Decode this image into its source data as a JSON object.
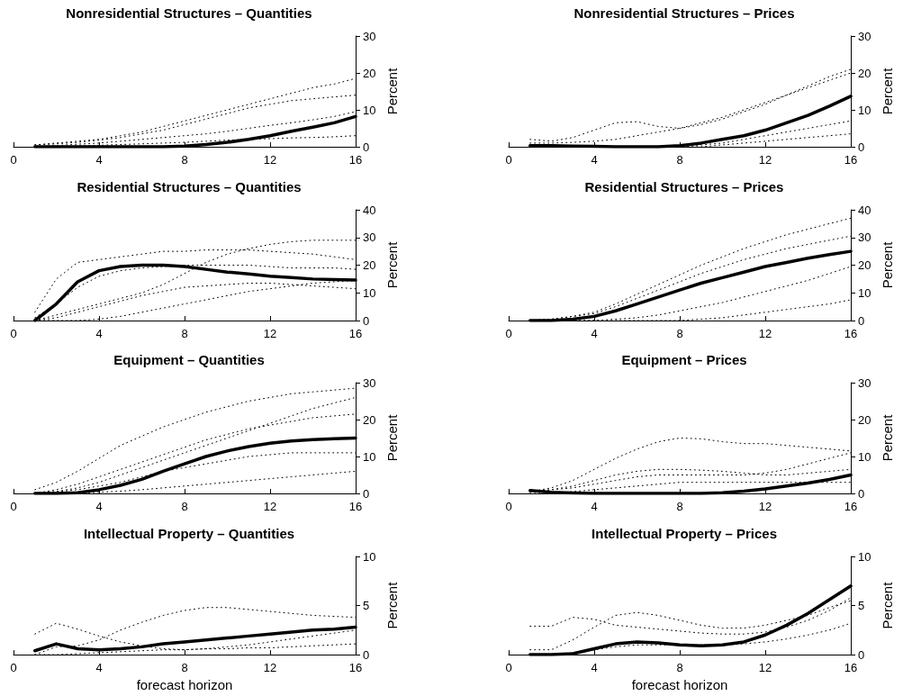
{
  "chart_data": [
    {
      "type": "line",
      "title": "Nonresidential Structures – Quantities",
      "ylabel": "Percent",
      "x": [
        1,
        2,
        3,
        4,
        5,
        6,
        7,
        8,
        9,
        10,
        11,
        12,
        13,
        14,
        15,
        16
      ],
      "xlim": [
        0,
        16
      ],
      "xticks": [
        0,
        4,
        8,
        12,
        16
      ],
      "ylim": [
        0,
        30
      ],
      "yticks": [
        0,
        10,
        20,
        30
      ],
      "grid": false,
      "marker": "none",
      "series": [
        {
          "color": "#000000",
          "line_style": "dotted",
          "values": [
            0.5,
            1,
            1.5,
            2,
            3,
            4,
            5.5,
            7,
            8.5,
            10,
            11.5,
            13,
            14.5,
            16,
            17,
            18.5
          ]
        },
        {
          "color": "#000000",
          "line_style": "dotted",
          "values": [
            0.5,
            0.8,
            1.2,
            1.8,
            2.5,
            3.5,
            4.5,
            6,
            7.5,
            9,
            10.5,
            11.5,
            12.5,
            13,
            13.5,
            14
          ]
        },
        {
          "color": "#000000",
          "line_style": "dotted",
          "values": [
            0,
            0.3,
            0.7,
            1,
            1.5,
            2,
            2.5,
            3,
            3.5,
            4.2,
            5,
            5.8,
            6.5,
            7.3,
            8.2,
            9.5
          ]
        },
        {
          "color": "#000000",
          "line_style": "dotted",
          "values": [
            0,
            0,
            0.2,
            0.4,
            0.6,
            0.8,
            1,
            1.2,
            1.5,
            1.8,
            2,
            2.2,
            2.4,
            2.5,
            2.7,
            3
          ]
        },
        {
          "color": "#000000",
          "line_style": "solid",
          "values": [
            0,
            0,
            0,
            0,
            0,
            0,
            0,
            0.2,
            0.6,
            1.2,
            2,
            3,
            4.2,
            5.3,
            6.5,
            8.2
          ]
        }
      ]
    },
    {
      "type": "line",
      "title": "Nonresidential Structures – Prices",
      "ylabel": "Percent",
      "x": [
        1,
        2,
        3,
        4,
        5,
        6,
        7,
        8,
        9,
        10,
        11,
        12,
        13,
        14,
        15,
        16
      ],
      "xlim": [
        0,
        16
      ],
      "xticks": [
        0,
        4,
        8,
        12,
        16
      ],
      "ylim": [
        0,
        30
      ],
      "yticks": [
        0,
        10,
        20,
        30
      ],
      "grid": false,
      "marker": "none",
      "series": [
        {
          "color": "#000000",
          "line_style": "dotted",
          "values": [
            2,
            1.5,
            2.5,
            4.5,
            6.5,
            6.8,
            5.5,
            5,
            6,
            7.5,
            9.5,
            11.5,
            14,
            16.5,
            19,
            21
          ]
        },
        {
          "color": "#000000",
          "line_style": "dotted",
          "values": [
            1,
            1,
            1.2,
            1.5,
            2,
            3,
            4,
            5,
            6.5,
            8,
            10,
            12,
            14,
            16,
            18,
            20
          ]
        },
        {
          "color": "#000000",
          "line_style": "dotted",
          "values": [
            0,
            0,
            0,
            0,
            0,
            0,
            0,
            0,
            0.5,
            1,
            2,
            3,
            4,
            5,
            6,
            7
          ]
        },
        {
          "color": "#000000",
          "line_style": "dotted",
          "values": [
            0,
            0,
            0,
            0,
            0,
            0,
            0,
            0,
            0,
            0.5,
            1,
            1.5,
            2,
            2.5,
            3,
            3.5
          ]
        },
        {
          "color": "#000000",
          "line_style": "solid",
          "values": [
            0.3,
            0.3,
            0.2,
            0.1,
            0,
            0,
            0,
            0.3,
            1,
            2,
            3,
            4.5,
            6.5,
            8.5,
            11,
            13.7
          ]
        }
      ]
    },
    {
      "type": "line",
      "title": "Residential Structures – Quantities",
      "ylabel": "Percent",
      "x": [
        1,
        2,
        3,
        4,
        5,
        6,
        7,
        8,
        9,
        10,
        11,
        12,
        13,
        14,
        15,
        16
      ],
      "xlim": [
        0,
        16
      ],
      "xticks": [
        0,
        4,
        8,
        12,
        16
      ],
      "ylim": [
        0,
        40
      ],
      "yticks": [
        0,
        10,
        20,
        30,
        40
      ],
      "grid": false,
      "marker": "none",
      "series": [
        {
          "color": "#000000",
          "line_style": "dotted",
          "values": [
            3,
            15,
            21,
            22,
            23,
            24,
            25,
            25,
            25.5,
            25.5,
            25.5,
            25,
            24.5,
            24,
            23,
            22
          ]
        },
        {
          "color": "#000000",
          "line_style": "dotted",
          "values": [
            1,
            6,
            12,
            16,
            18,
            19,
            19.5,
            20,
            20,
            20,
            20,
            19.5,
            19,
            19,
            19,
            18.5
          ]
        },
        {
          "color": "#000000",
          "line_style": "dotted",
          "values": [
            0,
            2,
            4,
            6,
            8,
            10,
            13,
            17,
            21,
            24,
            26,
            27.5,
            28.5,
            29,
            29,
            29
          ]
        },
        {
          "color": "#000000",
          "line_style": "dotted",
          "values": [
            0,
            1,
            3,
            5,
            7,
            9,
            10.5,
            12,
            12.5,
            13,
            13.5,
            13.5,
            13,
            12.5,
            12,
            11.5
          ]
        },
        {
          "color": "#000000",
          "line_style": "dotted",
          "values": [
            0,
            0,
            0,
            0.5,
            1.5,
            3,
            4.5,
            6,
            7.5,
            9,
            10.5,
            11.5,
            12.5,
            13.5,
            14,
            14.5
          ]
        },
        {
          "color": "#000000",
          "line_style": "solid",
          "values": [
            0,
            6,
            14,
            18,
            19.5,
            20,
            20,
            19.5,
            18.5,
            17.5,
            16.8,
            16,
            15.5,
            15,
            14.8,
            14.6
          ]
        }
      ]
    },
    {
      "type": "line",
      "title": "Residential Structures – Prices",
      "ylabel": "Percent",
      "x": [
        1,
        2,
        3,
        4,
        5,
        6,
        7,
        8,
        9,
        10,
        11,
        12,
        13,
        14,
        15,
        16
      ],
      "xlim": [
        0,
        16
      ],
      "xticks": [
        0,
        4,
        8,
        12,
        16
      ],
      "ylim": [
        0,
        40
      ],
      "yticks": [
        0,
        10,
        20,
        30,
        40
      ],
      "grid": false,
      "marker": "none",
      "series": [
        {
          "color": "#000000",
          "line_style": "dotted",
          "values": [
            0,
            0.5,
            1.5,
            3,
            6,
            9.5,
            13,
            16.5,
            20,
            23,
            26,
            28.5,
            31,
            33,
            35,
            37
          ]
        },
        {
          "color": "#000000",
          "line_style": "dotted",
          "values": [
            0,
            0.5,
            1.5,
            2.5,
            5,
            8,
            11,
            14,
            17,
            19.5,
            22,
            24,
            26,
            27.5,
            29,
            30.5
          ]
        },
        {
          "color": "#000000",
          "line_style": "dotted",
          "values": [
            0,
            0,
            0,
            0,
            0.5,
            1,
            2,
            3.5,
            5,
            6.5,
            8.5,
            10.5,
            12.5,
            14.5,
            17,
            19.5
          ]
        },
        {
          "color": "#000000",
          "line_style": "dotted",
          "values": [
            0,
            0,
            0,
            0,
            0,
            0,
            0,
            0,
            0.5,
            1,
            2,
            3,
            4,
            5,
            6,
            7.5
          ]
        },
        {
          "color": "#000000",
          "line_style": "solid",
          "values": [
            0,
            0,
            0.5,
            1.5,
            3.5,
            6,
            8.5,
            11,
            13.5,
            15.5,
            17.5,
            19.5,
            21,
            22.5,
            23.8,
            25
          ]
        }
      ]
    },
    {
      "type": "line",
      "title": "Equipment – Quantities",
      "ylabel": "Percent",
      "x": [
        1,
        2,
        3,
        4,
        5,
        6,
        7,
        8,
        9,
        10,
        11,
        12,
        13,
        14,
        15,
        16
      ],
      "xlim": [
        0,
        16
      ],
      "xticks": [
        0,
        4,
        8,
        12,
        16
      ],
      "ylim": [
        0,
        30
      ],
      "yticks": [
        0,
        10,
        20,
        30
      ],
      "grid": false,
      "marker": "none",
      "series": [
        {
          "color": "#000000",
          "line_style": "dotted",
          "values": [
            1,
            3,
            6,
            9.5,
            13,
            15.5,
            18,
            20,
            22,
            23.5,
            25,
            26,
            27,
            27.5,
            28,
            28.5
          ]
        },
        {
          "color": "#000000",
          "line_style": "dotted",
          "values": [
            0,
            0.5,
            1.5,
            3,
            5,
            7,
            9,
            11,
            13,
            15,
            17,
            19,
            21,
            23,
            24.5,
            26
          ]
        },
        {
          "color": "#000000",
          "line_style": "dotted",
          "values": [
            0,
            1,
            2.5,
            4.5,
            6.5,
            8.5,
            10.5,
            12.5,
            14.5,
            16,
            17.5,
            18.5,
            19.5,
            20.5,
            21,
            21.5
          ]
        },
        {
          "color": "#000000",
          "line_style": "dotted",
          "values": [
            0,
            0.5,
            1,
            2,
            3,
            4.5,
            6,
            7,
            8,
            9,
            10,
            10.5,
            11,
            11,
            11,
            11
          ]
        },
        {
          "color": "#000000",
          "line_style": "dotted",
          "values": [
            0,
            0,
            0,
            0.3,
            0.6,
            1,
            1.5,
            2,
            2.5,
            3,
            3.5,
            4,
            4.5,
            5,
            5.5,
            6
          ]
        },
        {
          "color": "#000000",
          "line_style": "solid",
          "values": [
            0,
            0,
            0.2,
            1,
            2.2,
            3.8,
            6,
            8,
            10,
            11.5,
            12.7,
            13.6,
            14.2,
            14.6,
            14.8,
            15
          ]
        }
      ]
    },
    {
      "type": "line",
      "title": "Equipment – Prices",
      "ylabel": "Percent",
      "x": [
        1,
        2,
        3,
        4,
        5,
        6,
        7,
        8,
        9,
        10,
        11,
        12,
        13,
        14,
        15,
        16
      ],
      "xlim": [
        0,
        16
      ],
      "xticks": [
        0,
        4,
        8,
        12,
        16
      ],
      "ylim": [
        0,
        30
      ],
      "yticks": [
        0,
        10,
        20,
        30
      ],
      "grid": false,
      "marker": "none",
      "series": [
        {
          "color": "#000000",
          "line_style": "dotted",
          "values": [
            0.5,
            1.5,
            3.5,
            6.5,
            9.5,
            12,
            14,
            15,
            14.8,
            14,
            13.5,
            13.5,
            13,
            12.5,
            12,
            11.5
          ]
        },
        {
          "color": "#000000",
          "line_style": "dotted",
          "values": [
            0.5,
            1,
            2,
            3.5,
            5,
            6,
            6.5,
            6.5,
            6.3,
            6,
            5.5,
            5,
            5,
            5.5,
            6,
            6.5
          ]
        },
        {
          "color": "#000000",
          "line_style": "dotted",
          "values": [
            0.5,
            1,
            1.5,
            2.5,
            3.5,
            4.5,
            5,
            5,
            5,
            5,
            5,
            5.5,
            6.5,
            8,
            9.5,
            11
          ]
        },
        {
          "color": "#000000",
          "line_style": "dotted",
          "values": [
            0,
            0,
            0.5,
            1,
            1.5,
            2,
            2.5,
            3,
            3,
            3,
            3,
            3,
            3,
            3,
            3,
            3
          ]
        },
        {
          "color": "#000000",
          "line_style": "solid",
          "values": [
            0.8,
            0.3,
            0.1,
            0,
            0,
            0,
            0,
            0,
            0,
            0.2,
            0.6,
            1.2,
            2,
            2.8,
            3.8,
            5
          ]
        }
      ]
    },
    {
      "type": "line",
      "title": "Intellectual Property – Quantities",
      "xlabel": "forecast horizon",
      "ylabel": "Percent",
      "x": [
        1,
        2,
        3,
        4,
        5,
        6,
        7,
        8,
        9,
        10,
        11,
        12,
        13,
        14,
        15,
        16
      ],
      "xlim": [
        0,
        16
      ],
      "xticks": [
        0,
        4,
        8,
        12,
        16
      ],
      "ylim": [
        0,
        10
      ],
      "yticks": [
        0,
        5,
        10
      ],
      "grid": false,
      "marker": "none",
      "series": [
        {
          "color": "#000000",
          "line_style": "dotted",
          "values": [
            2.1,
            3.2,
            2.6,
            1.9,
            1.3,
            0.9,
            0.6,
            0.5,
            0.6,
            0.8,
            1,
            1.3,
            1.6,
            1.9,
            2.2,
            2.5
          ]
        },
        {
          "color": "#000000",
          "line_style": "dotted",
          "values": [
            0,
            0.8,
            0.9,
            1.5,
            2.5,
            3.3,
            4,
            4.5,
            4.8,
            4.8,
            4.6,
            4.4,
            4.2,
            4,
            3.9,
            3.8
          ]
        },
        {
          "color": "#000000",
          "line_style": "dotted",
          "values": [
            0,
            0,
            0.1,
            0.2,
            0.3,
            0.4,
            0.5,
            0.5,
            0.6,
            0.6,
            0.7,
            0.7,
            0.8,
            0.9,
            1,
            1.1
          ]
        },
        {
          "color": "#000000",
          "line_style": "solid",
          "values": [
            0.4,
            1.1,
            0.6,
            0.5,
            0.6,
            0.8,
            1.1,
            1.3,
            1.5,
            1.7,
            1.9,
            2.1,
            2.3,
            2.5,
            2.6,
            2.8
          ]
        }
      ]
    },
    {
      "type": "line",
      "title": "Intellectual Property – Prices",
      "xlabel": "forecast horizon",
      "ylabel": "Percent",
      "x": [
        1,
        2,
        3,
        4,
        5,
        6,
        7,
        8,
        9,
        10,
        11,
        12,
        13,
        14,
        15,
        16
      ],
      "xlim": [
        0,
        16
      ],
      "xticks": [
        0,
        4,
        8,
        12,
        16
      ],
      "ylim": [
        0,
        10
      ],
      "yticks": [
        0,
        5,
        10
      ],
      "grid": false,
      "marker": "none",
      "series": [
        {
          "color": "#000000",
          "line_style": "dotted",
          "values": [
            2.9,
            2.9,
            3.8,
            3.6,
            3,
            2.8,
            2.6,
            2.4,
            2.2,
            2.1,
            2.1,
            2.3,
            2.8,
            3.5,
            4.5,
            5.8
          ]
        },
        {
          "color": "#000000",
          "line_style": "dotted",
          "values": [
            0.5,
            0.5,
            1.5,
            2.8,
            4,
            4.3,
            4,
            3.5,
            3,
            2.7,
            2.7,
            3,
            3.5,
            4,
            4.8,
            5.5
          ]
        },
        {
          "color": "#000000",
          "line_style": "dotted",
          "values": [
            0,
            0,
            0.2,
            0.5,
            0.8,
            1,
            1,
            1,
            1,
            1,
            1.1,
            1.3,
            1.6,
            2,
            2.5,
            3.2
          ]
        },
        {
          "color": "#000000",
          "line_style": "solid",
          "values": [
            0,
            0,
            0.1,
            0.6,
            1.1,
            1.3,
            1.2,
            1,
            0.9,
            1,
            1.3,
            2,
            3,
            4.2,
            5.6,
            7
          ]
        }
      ]
    }
  ]
}
